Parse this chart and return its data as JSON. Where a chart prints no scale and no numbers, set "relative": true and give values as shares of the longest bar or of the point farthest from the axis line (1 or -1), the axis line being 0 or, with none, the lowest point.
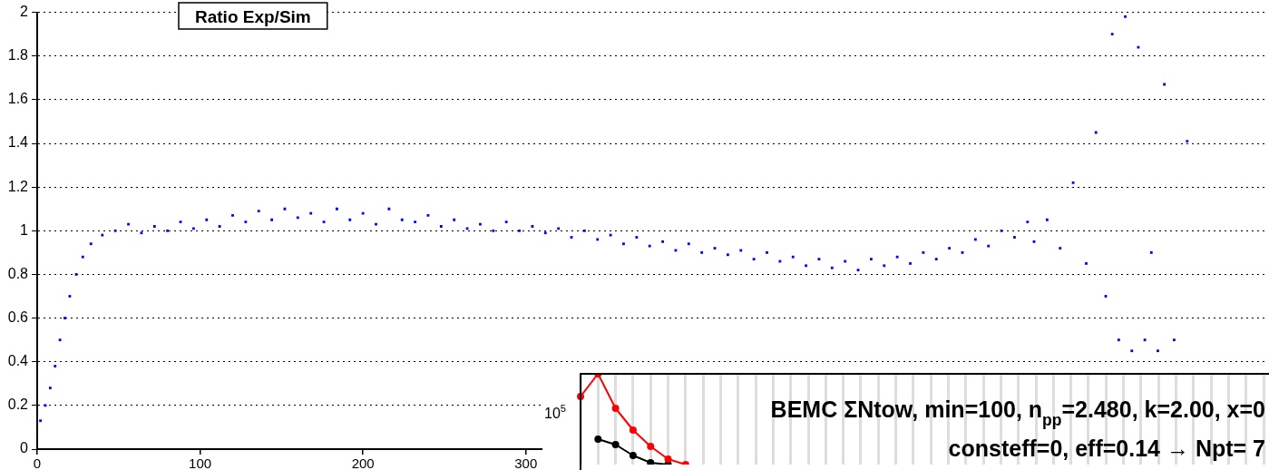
{
  "chart_data": [
    {
      "type": "scatter",
      "title": "Ratio Exp/Sim",
      "x": [
        2,
        5,
        8,
        11,
        14,
        17,
        20,
        24,
        28,
        33,
        40,
        48,
        56,
        64,
        72,
        80,
        88,
        96,
        104,
        112,
        120,
        128,
        136,
        144,
        152,
        160,
        168,
        176,
        184,
        192,
        200,
        208,
        216,
        224,
        232,
        240,
        248,
        256,
        264,
        272,
        280,
        288,
        296,
        304,
        312,
        320,
        328,
        336,
        344,
        352,
        360,
        368,
        376,
        384,
        392,
        400,
        408,
        416,
        424,
        432,
        440,
        448,
        456,
        464,
        472,
        480,
        488,
        496,
        504,
        512,
        520,
        528,
        536,
        544,
        552,
        560,
        568,
        576,
        584,
        592,
        600,
        608,
        612,
        620,
        628,
        636,
        644,
        650,
        656,
        660,
        664,
        668,
        672,
        676,
        680,
        684,
        688,
        692,
        698,
        706
      ],
      "series": [
        {
          "color": "#0000ff",
          "values": [
            0.13,
            0.2,
            0.28,
            0.38,
            0.5,
            0.6,
            0.7,
            0.8,
            0.88,
            0.94,
            0.98,
            1.0,
            1.03,
            0.99,
            1.02,
            1.0,
            1.04,
            1.01,
            1.05,
            1.02,
            1.07,
            1.04,
            1.09,
            1.05,
            1.1,
            1.06,
            1.08,
            1.04,
            1.1,
            1.05,
            1.08,
            1.03,
            1.1,
            1.05,
            1.04,
            1.07,
            1.02,
            1.05,
            1.01,
            1.03,
            1.0,
            1.04,
            1.0,
            1.02,
            0.99,
            1.01,
            0.97,
            1.0,
            0.96,
            0.98,
            0.94,
            0.97,
            0.93,
            0.95,
            0.91,
            0.94,
            0.9,
            0.92,
            0.89,
            0.91,
            0.87,
            0.9,
            0.86,
            0.88,
            0.84,
            0.87,
            0.83,
            0.86,
            0.82,
            0.87,
            0.84,
            0.88,
            0.85,
            0.9,
            0.87,
            0.92,
            0.9,
            0.96,
            0.93,
            1.0,
            0.97,
            1.04,
            0.95,
            1.05,
            0.92,
            1.22,
            0.85,
            1.45,
            0.7,
            1.9,
            0.5,
            1.98,
            0.45,
            1.84,
            0.5,
            0.9,
            0.45,
            1.67,
            0.5,
            1.41
          ]
        }
      ],
      "xlim": [
        0,
        754
      ],
      "xticks": [
        0,
        100,
        200,
        300
      ],
      "ylim": [
        0,
        2
      ],
      "yticks": [
        0,
        0.2,
        0.4,
        0.6,
        0.8,
        1,
        1.2,
        1.4,
        1.6,
        1.8,
        2
      ],
      "grid": "y",
      "marker": "square",
      "legend": false
    },
    {
      "type": "line",
      "relative": true,
      "categories": [
        null,
        null,
        null,
        null,
        null,
        null,
        null,
        null,
        null,
        null,
        null,
        null,
        null,
        null,
        null,
        null,
        null,
        null,
        null,
        null,
        null,
        null,
        null,
        null,
        null,
        null,
        null,
        null,
        null,
        null,
        null,
        null,
        null,
        null,
        null,
        null,
        null,
        null,
        null,
        null
      ],
      "series": [
        {
          "color": "#ff0000",
          "values": [
            0.75,
            1,
            0.62,
            0.38,
            0.2,
            0.06,
            0,
            null,
            null,
            null,
            null,
            null,
            null,
            null,
            null,
            null,
            null,
            null,
            null,
            null,
            null,
            null,
            null,
            null,
            null,
            null,
            null,
            null,
            null,
            null,
            null,
            null,
            null,
            null,
            null,
            null,
            null,
            null,
            null,
            null
          ]
        },
        {
          "color": "#000000",
          "values": [
            null,
            0.28,
            0.22,
            0.1,
            0.02,
            0,
            null,
            null,
            null,
            null,
            null,
            null,
            null,
            null,
            null,
            null,
            null,
            null,
            null,
            null,
            null,
            null,
            null,
            null,
            null,
            null,
            null,
            null,
            null,
            null,
            null,
            null,
            null,
            null,
            null,
            null,
            null,
            null,
            null,
            null
          ]
        }
      ],
      "annotations": [
        "10$^{5}$",
        "BEMC ΣNtow, min=100, n$_{pp}$=2.480, k=2.00, x=0",
        "consteff=0, eff=0.14 → Npt= 7"
      ],
      "grid": "x",
      "marker": "circle",
      "legend": false
    }
  ]
}
